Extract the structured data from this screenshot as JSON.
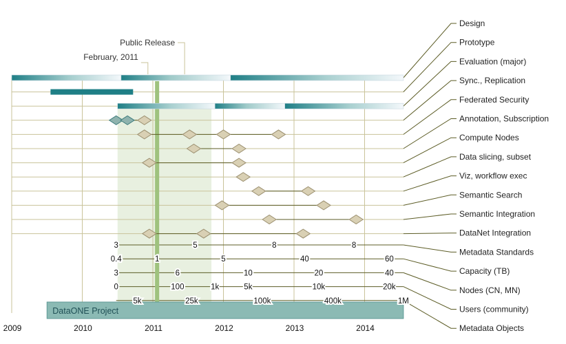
{
  "chart_data": {
    "type": "timeline",
    "title": "",
    "x_axis": {
      "label": "",
      "start": 2009,
      "end": 2014.55,
      "ticks": [
        "2009",
        "2010",
        "2011",
        "2012",
        "2013",
        "2014"
      ]
    },
    "highlight_period": {
      "start": 2010.5,
      "end": 2011.83
    },
    "milestone_line": {
      "x": 2011.06
    },
    "annotations": [
      {
        "text": "Public Release",
        "x": 2011.45
      },
      {
        "text": "February, 2011",
        "x": 2010.93
      }
    ],
    "project": {
      "label": "DataONE Project",
      "start": 2009.5,
      "end": 2014.55
    },
    "colors": {
      "teal": "#1f7f86",
      "diamond": "#d9d0b4",
      "diamond_edge": "#9c9070",
      "leader": "#5b5b24",
      "grid": "#c9c39a",
      "highlight": "#e8f0e0",
      "milestone": "#9fc27e",
      "project": "#8bbab4"
    },
    "bar_rows": [
      {
        "label": "Design",
        "segments": [
          {
            "start": 2009,
            "end": 2010.55
          },
          {
            "start": 2010.55,
            "end": 2012.1
          },
          {
            "start": 2012.1,
            "end": 2014.55
          }
        ]
      },
      {
        "label": "Prototype",
        "segments": [
          {
            "start": 2009.55,
            "end": 2010.72,
            "solid": true
          }
        ]
      },
      {
        "label": "Evaluation (major)",
        "segments": [
          {
            "start": 2010.5,
            "end": 2011.88
          },
          {
            "start": 2011.88,
            "end": 2012.87
          },
          {
            "start": 2012.87,
            "end": 2014.55
          }
        ]
      }
    ],
    "milestone_rows": [
      {
        "label": "Sync., Replication",
        "points": [
          2010.48,
          2010.64,
          2010.88
        ]
      },
      {
        "label": "Federated Security",
        "points": [
          2010.88,
          2011.52,
          2012.0,
          2012.78
        ]
      },
      {
        "label": "Annotation, Subscription",
        "points": [
          2011.58,
          2012.22
        ]
      },
      {
        "label": "Compute Nodes",
        "points": [
          2010.95,
          2012.22
        ]
      },
      {
        "label": "Data slicing, subset",
        "points": [
          2012.28
        ]
      },
      {
        "label": "Viz, workflow exec",
        "points": [
          2012.5,
          2013.2
        ]
      },
      {
        "label": "Semantic Search",
        "points": [
          2011.98,
          2013.42
        ]
      },
      {
        "label": "Semantic Integration",
        "points": [
          2012.65,
          2013.88
        ]
      },
      {
        "label": "DataNet Integration",
        "points": [
          2010.95,
          2011.72,
          2013.13
        ]
      }
    ],
    "metric_rows": [
      {
        "label": "Metadata Standards",
        "values": [
          {
            "x": 2010.48,
            "text": "3"
          },
          {
            "x": 2011.6,
            "text": "5"
          },
          {
            "x": 2012.72,
            "text": "8"
          },
          {
            "x": 2013.85,
            "text": "8"
          }
        ]
      },
      {
        "label": "Capacity (TB)",
        "values": [
          {
            "x": 2010.48,
            "text": "0.4"
          },
          {
            "x": 2011.06,
            "text": "1"
          },
          {
            "x": 2012.0,
            "text": "5"
          },
          {
            "x": 2013.15,
            "text": "40"
          },
          {
            "x": 2014.35,
            "text": "60"
          }
        ]
      },
      {
        "label": "Nodes (CN, MN)",
        "values": [
          {
            "x": 2010.48,
            "text": "3"
          },
          {
            "x": 2011.35,
            "text": "6"
          },
          {
            "x": 2012.35,
            "text": "10"
          },
          {
            "x": 2013.35,
            "text": "20"
          },
          {
            "x": 2014.35,
            "text": "40"
          }
        ]
      },
      {
        "label": "Users (community)",
        "values": [
          {
            "x": 2010.48,
            "text": "0"
          },
          {
            "x": 2011.35,
            "text": "100"
          },
          {
            "x": 2011.88,
            "text": "1k"
          },
          {
            "x": 2012.35,
            "text": "5k"
          },
          {
            "x": 2013.35,
            "text": "10k"
          },
          {
            "x": 2014.35,
            "text": "20k"
          }
        ]
      },
      {
        "label": "Metadata Objects",
        "values": [
          {
            "x": 2010.78,
            "text": "5k"
          },
          {
            "x": 2011.55,
            "text": "25k"
          },
          {
            "x": 2012.55,
            "text": "100k"
          },
          {
            "x": 2013.55,
            "text": "400k"
          },
          {
            "x": 2014.55,
            "text": "1M"
          }
        ]
      }
    ]
  }
}
